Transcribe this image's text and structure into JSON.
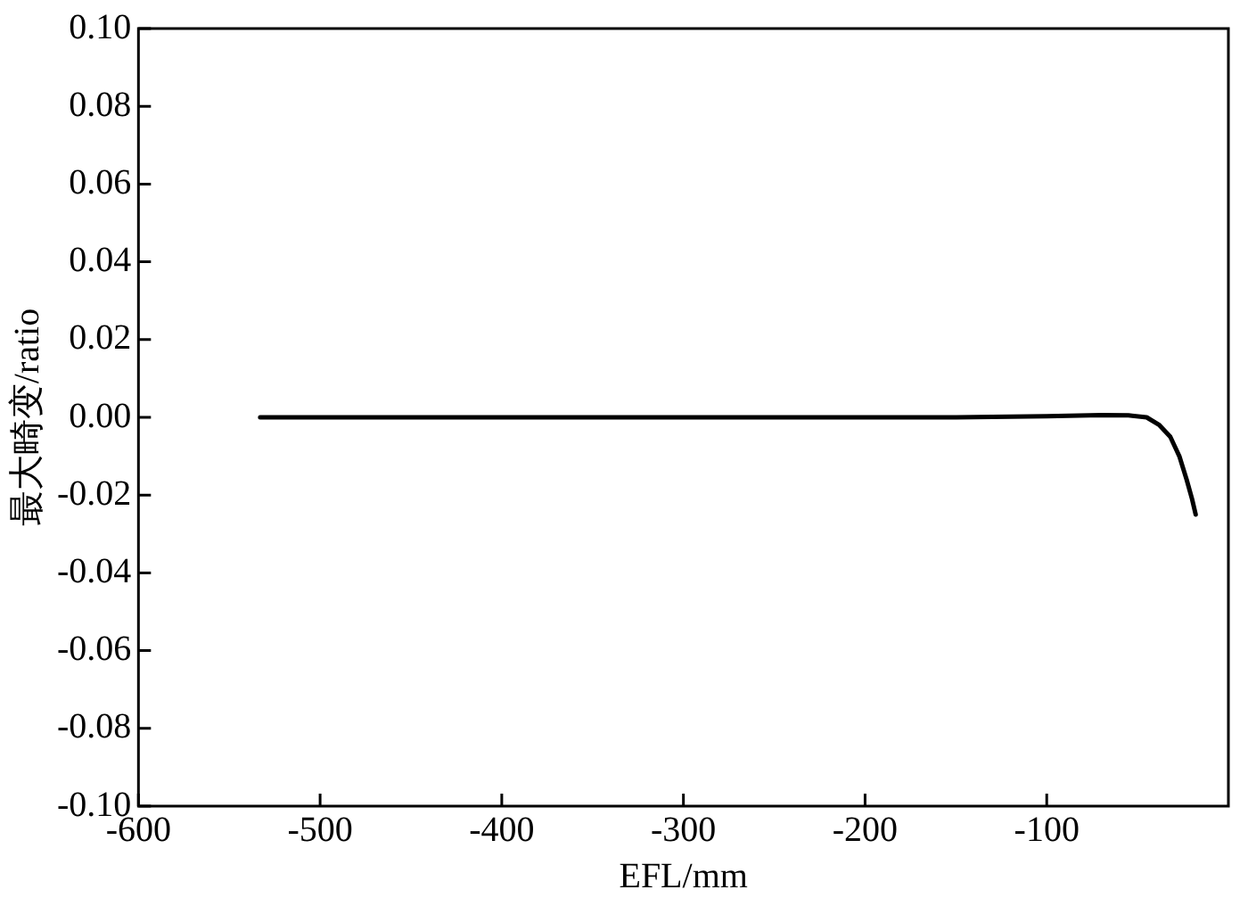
{
  "chart_data": {
    "type": "line",
    "xlabel": "EFL/mm",
    "ylabel": "最大畸变/ratio",
    "xlim": [
      -600,
      0
    ],
    "xticks": [
      -600,
      -500,
      -400,
      -300,
      -200,
      -100
    ],
    "ylim": [
      -0.1,
      0.1
    ],
    "yticks": [
      {
        "value": -0.1,
        "label": "-0.10"
      },
      {
        "value": -0.08,
        "label": "-0.08"
      },
      {
        "value": -0.06,
        "label": "-0.06"
      },
      {
        "value": -0.04,
        "label": "-0.04"
      },
      {
        "value": -0.02,
        "label": "-0.02"
      },
      {
        "value": 0,
        "label": "0.00"
      },
      {
        "value": 0.02,
        "label": "0.02"
      },
      {
        "value": 0.04,
        "label": "0.04"
      },
      {
        "value": 0.06,
        "label": "0.06"
      },
      {
        "value": 0.08,
        "label": "0.08"
      },
      {
        "value": 0.1,
        "label": "0.10"
      }
    ],
    "marker": "none",
    "line_style": "solid",
    "series": [
      {
        "color": "#000000",
        "x": [
          -533,
          -400,
          -300,
          -200,
          -150,
          -100,
          -70,
          -55,
          -45,
          -38,
          -32,
          -27,
          -23,
          -20,
          -18
        ],
        "values": [
          0,
          0,
          0,
          0,
          0,
          0.0003,
          0.0006,
          0.0005,
          0,
          -0.002,
          -0.005,
          -0.01,
          -0.016,
          -0.021,
          -0.025
        ]
      }
    ]
  }
}
